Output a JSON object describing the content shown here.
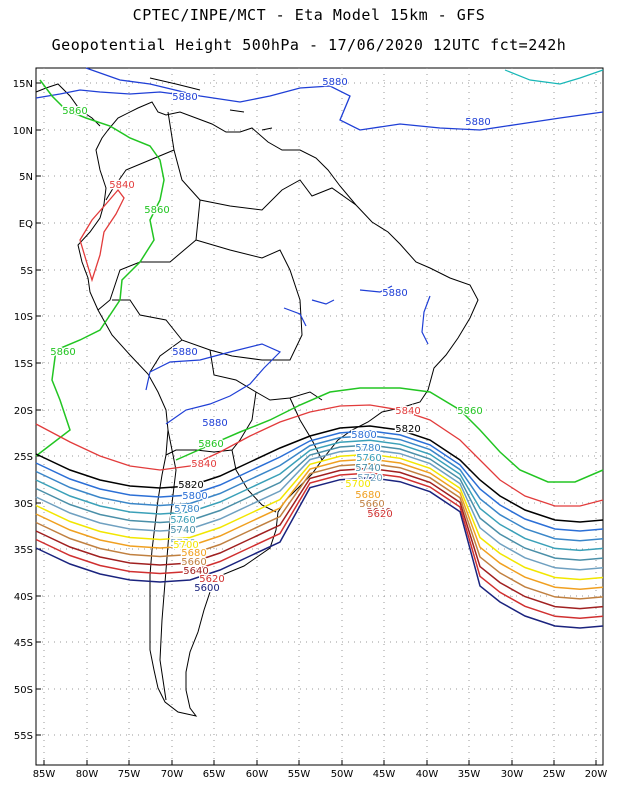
{
  "header": {
    "line1": "CPTEC/INPE/MCT  -   Eta Model 15km  -  GFS",
    "line2": "Geopotential Height 500hPa  - 17/06/2020 12UTC fct=242h"
  },
  "map": {
    "lat_ticks": [
      "15N",
      "10N",
      "5N",
      "EQ",
      "5S",
      "10S",
      "15S",
      "20S",
      "25S",
      "30S",
      "35S",
      "40S",
      "45S",
      "50S",
      "55S"
    ],
    "lon_ticks": [
      "85W",
      "80W",
      "75W",
      "70W",
      "65W",
      "60W",
      "55W",
      "50W",
      "45W",
      "40W",
      "35W",
      "30W",
      "25W",
      "20W"
    ],
    "contour_colors": {
      "5860": "#22c522",
      "5840": "#e23b3b",
      "5820": "#000000",
      "5800": "#2b6fd6",
      "5780": "#3a86c8",
      "5760": "#3aa0b8",
      "5740": "#4a8fa8",
      "5720": "#6fa0c0",
      "5700": "#f2e600",
      "5680": "#f0a020",
      "5660": "#c08040",
      "5640": "#a02020",
      "5620": "#d03030",
      "5600": "#1a237e",
      "5880": "#1f3fd6"
    },
    "labels": [
      {
        "text": "5880"
      },
      {
        "text": "5880"
      },
      {
        "text": "5880"
      },
      {
        "text": "5880"
      },
      {
        "text": "5880"
      },
      {
        "text": "5880"
      },
      {
        "text": "5860"
      },
      {
        "text": "5860"
      },
      {
        "text": "5860"
      },
      {
        "text": "5860"
      },
      {
        "text": "5860"
      },
      {
        "text": "5840"
      },
      {
        "text": "5840"
      },
      {
        "text": "5840"
      },
      {
        "text": "5820"
      },
      {
        "text": "5820"
      },
      {
        "text": "5800"
      },
      {
        "text": "5800"
      },
      {
        "text": "5780"
      },
      {
        "text": "5780"
      },
      {
        "text": "5760"
      },
      {
        "text": "5760"
      },
      {
        "text": "5740"
      },
      {
        "text": "5740"
      },
      {
        "text": "5720"
      },
      {
        "text": "5720"
      },
      {
        "text": "5700"
      },
      {
        "text": "5700"
      },
      {
        "text": "5680"
      },
      {
        "text": "5680"
      },
      {
        "text": "5660"
      },
      {
        "text": "5660"
      },
      {
        "text": "5640"
      },
      {
        "text": "5640"
      },
      {
        "text": "5620"
      },
      {
        "text": "5620"
      },
      {
        "text": "5600"
      }
    ]
  }
}
